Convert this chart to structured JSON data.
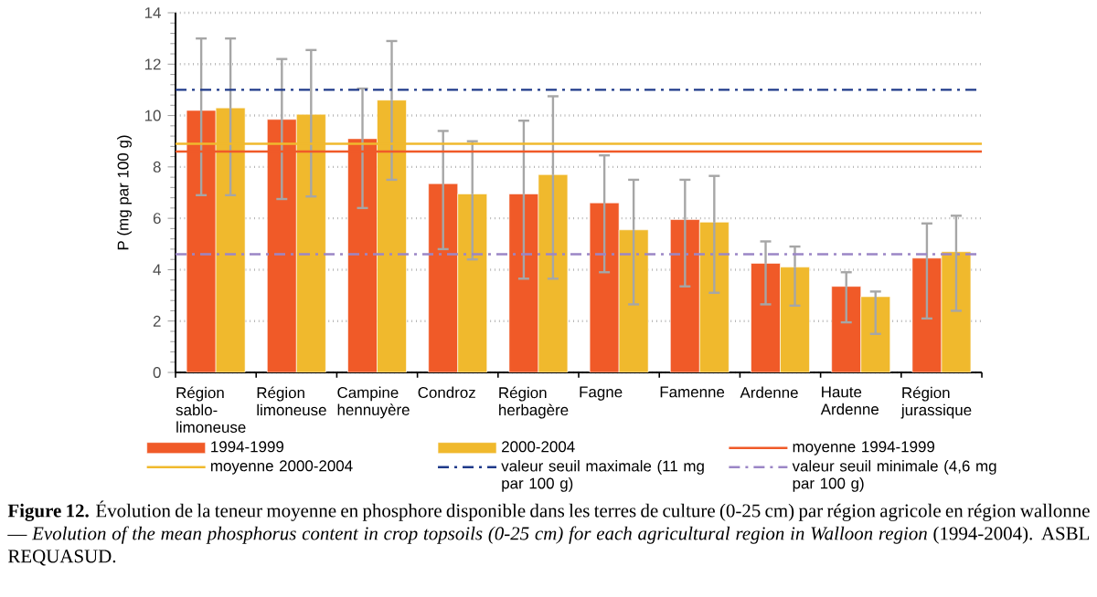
{
  "chart_data": {
    "type": "bar",
    "ylabel": "P (mg par 100 g)",
    "categories": [
      "Région sablo-limoneuse",
      "Région limoneuse",
      "Campine hennuyère",
      "Condroz",
      "Région herbagère",
      "Fagne",
      "Famenne",
      "Ardenne",
      "Haute Ardenne",
      "Région jurassique"
    ],
    "series": [
      {
        "name": "1994-1999",
        "color": "#f05a28",
        "values": [
          10.2,
          9.85,
          9.1,
          7.35,
          6.95,
          6.6,
          5.95,
          4.25,
          3.35,
          4.45
        ],
        "errors": [
          [
            6.9,
            13.0
          ],
          [
            6.75,
            12.2
          ],
          [
            6.4,
            11.05
          ],
          [
            4.8,
            9.4
          ],
          [
            3.65,
            9.8
          ],
          [
            3.9,
            8.45
          ],
          [
            3.35,
            7.5
          ],
          [
            2.65,
            5.1
          ],
          [
            1.95,
            3.9
          ],
          [
            2.1,
            5.8
          ]
        ]
      },
      {
        "name": "2000-2004",
        "color": "#f0b92d",
        "values": [
          10.3,
          10.05,
          10.6,
          6.95,
          7.7,
          5.55,
          5.85,
          4.1,
          2.95,
          4.7
        ],
        "errors": [
          [
            6.9,
            13.0
          ],
          [
            6.85,
            12.55
          ],
          [
            7.5,
            12.9
          ],
          [
            4.4,
            9.0
          ],
          [
            3.65,
            10.75
          ],
          [
            2.65,
            7.5
          ],
          [
            3.1,
            7.65
          ],
          [
            2.6,
            4.9
          ],
          [
            1.5,
            3.15
          ],
          [
            2.4,
            6.1
          ]
        ]
      }
    ],
    "ref_lines": [
      {
        "axis": "y",
        "value": 8.6,
        "label": "moyenne 1994-1999",
        "color": "#f05a28",
        "line_style": "solid"
      },
      {
        "axis": "y",
        "value": 8.9,
        "label": "moyenne 2000-2004",
        "color": "#f0b92d",
        "line_style": "solid"
      },
      {
        "axis": "y",
        "value": 11,
        "label": "valeur seuil maximale (11 mg par 100 g)",
        "color": "#1f3a8a",
        "line_style": "dashdot"
      },
      {
        "axis": "y",
        "value": 4.6,
        "label": "valeur seuil minimale (4,6 mg par 100 g)",
        "color": "#9b86c6",
        "line_style": "dashdot"
      }
    ],
    "ylim": [
      0,
      14
    ],
    "yticks": [
      0,
      2,
      4,
      6,
      8,
      10,
      12,
      14
    ],
    "grid": "y",
    "legend": "bottom",
    "annotations": [
      "**Figure 12.** Évolution de la teneur moyenne en phosphore disponible dans les terres de culture (0-25 cm) par région agricole en région wallonne — *Evolution of the mean phosphorus content in crop topsoils (0-25 cm) for each agricultural region in Walloon region* (1994-2004). ASBL REQUASUD."
    ]
  }
}
